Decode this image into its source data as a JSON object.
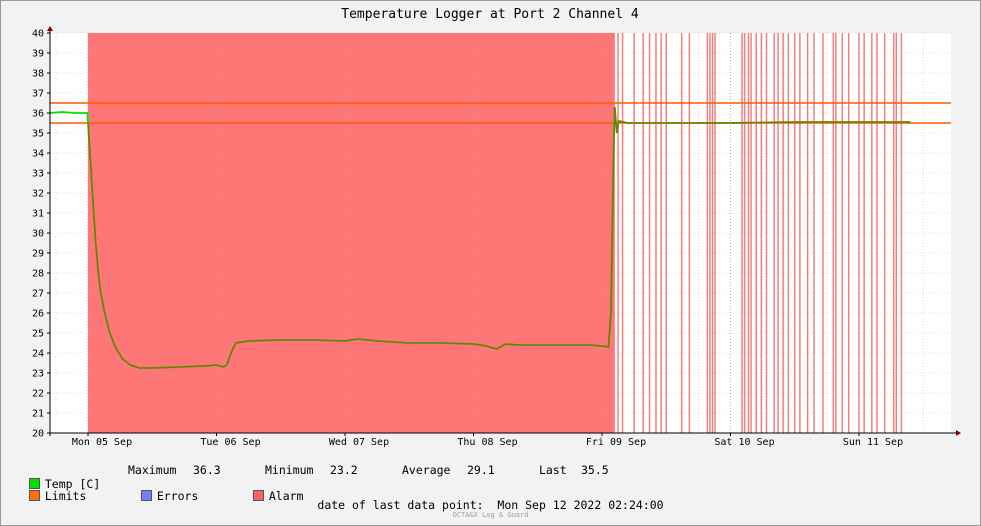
{
  "chart_data": {
    "type": "line",
    "title": "Temperature Logger at Port 2 Channel 4",
    "ylim": [
      20,
      40
    ],
    "y_ticks": [
      20,
      21,
      22,
      23,
      24,
      25,
      26,
      27,
      28,
      29,
      30,
      31,
      32,
      33,
      34,
      35,
      36,
      37,
      38,
      39,
      40
    ],
    "x_ticks": [
      "Mon 05 Sep",
      "Tue 06 Sep",
      "Wed 07 Sep",
      "Thu 08 Sep",
      "Fri 09 Sep",
      "Sat 10 Sep",
      "Sun 11 Sep"
    ],
    "x_range_days": [
      -0.3,
      6.4
    ],
    "grid": true,
    "limits": [
      35.5,
      36.5
    ],
    "series": [
      {
        "name": "Temp [C]",
        "color": "#00e000",
        "points": [
          [
            -0.3,
            36.0
          ],
          [
            -0.2,
            36.05
          ],
          [
            -0.1,
            36.0
          ],
          [
            -0.005,
            36.0
          ],
          [
            0.0,
            35.5
          ],
          [
            0.02,
            33.5
          ],
          [
            0.04,
            31.5
          ],
          [
            0.06,
            29.5
          ],
          [
            0.08,
            28.0
          ],
          [
            0.1,
            27.0
          ],
          [
            0.13,
            26.0
          ],
          [
            0.17,
            25.0
          ],
          [
            0.22,
            24.2
          ],
          [
            0.27,
            23.7
          ],
          [
            0.33,
            23.4
          ],
          [
            0.4,
            23.25
          ],
          [
            0.5,
            23.25
          ],
          [
            0.7,
            23.3
          ],
          [
            0.9,
            23.35
          ],
          [
            1.0,
            23.4
          ],
          [
            1.05,
            23.3
          ],
          [
            1.08,
            23.4
          ],
          [
            1.12,
            24.1
          ],
          [
            1.15,
            24.5
          ],
          [
            1.25,
            24.6
          ],
          [
            1.5,
            24.65
          ],
          [
            1.75,
            24.65
          ],
          [
            2.0,
            24.6
          ],
          [
            2.1,
            24.7
          ],
          [
            2.18,
            24.65
          ],
          [
            2.25,
            24.6
          ],
          [
            2.5,
            24.5
          ],
          [
            2.75,
            24.5
          ],
          [
            3.0,
            24.45
          ],
          [
            3.1,
            24.35
          ],
          [
            3.18,
            24.2
          ],
          [
            3.25,
            24.45
          ],
          [
            3.35,
            24.4
          ],
          [
            3.5,
            24.4
          ],
          [
            3.75,
            24.4
          ],
          [
            3.9,
            24.4
          ],
          [
            4.0,
            24.35
          ],
          [
            4.05,
            24.3
          ],
          [
            4.07,
            26.0
          ],
          [
            4.08,
            30.0
          ],
          [
            4.09,
            34.0
          ],
          [
            4.1,
            36.3
          ],
          [
            4.115,
            35.0
          ],
          [
            4.13,
            35.6
          ],
          [
            4.2,
            35.5
          ],
          [
            4.5,
            35.5
          ],
          [
            5.0,
            35.5
          ],
          [
            5.5,
            35.55
          ],
          [
            6.0,
            35.55
          ],
          [
            6.4,
            35.55
          ]
        ]
      },
      {
        "name": "Limits",
        "color": "#ff7000"
      },
      {
        "name": "Errors",
        "color": "#6f7fff"
      },
      {
        "name": "Alarm",
        "color": "#ff6060"
      }
    ],
    "alarm_band": [
      0.0,
      4.1
    ],
    "alarm_lines": [
      4.125,
      4.16,
      4.25,
      4.32,
      4.37,
      4.42,
      4.46,
      4.5,
      4.62,
      4.68,
      4.82,
      4.84,
      4.86,
      4.88,
      5.09,
      5.11,
      5.14,
      5.16,
      5.2,
      5.24,
      5.28,
      5.34,
      5.37,
      5.41,
      5.45,
      5.5,
      5.54,
      5.6,
      5.65,
      5.72,
      5.8,
      5.82,
      5.87,
      5.92,
      6.0,
      6.04,
      6.1,
      6.14,
      6.2,
      6.27,
      6.29,
      6.33
    ],
    "stats": {
      "maximum": "36.3",
      "minimum": "23.2",
      "average": "29.1",
      "last": "35.5"
    }
  },
  "legend": {
    "temp_label": "Temp [C]",
    "max_label": "Maximum",
    "max_value": "36.3",
    "min_label": "Minimum",
    "min_value": "23.2",
    "avg_label": "Average",
    "avg_value": "29.1",
    "last_label": "Last",
    "last_value": "35.5",
    "limits_label": "Limits",
    "errors_label": "Errors",
    "alarm_label": "Alarm"
  },
  "footer": {
    "last_point_label": "date of last data point:",
    "last_point_value": "Mon Sep 12 2022 02:24:00",
    "watermark": "OCTA&X Log & Guard"
  }
}
